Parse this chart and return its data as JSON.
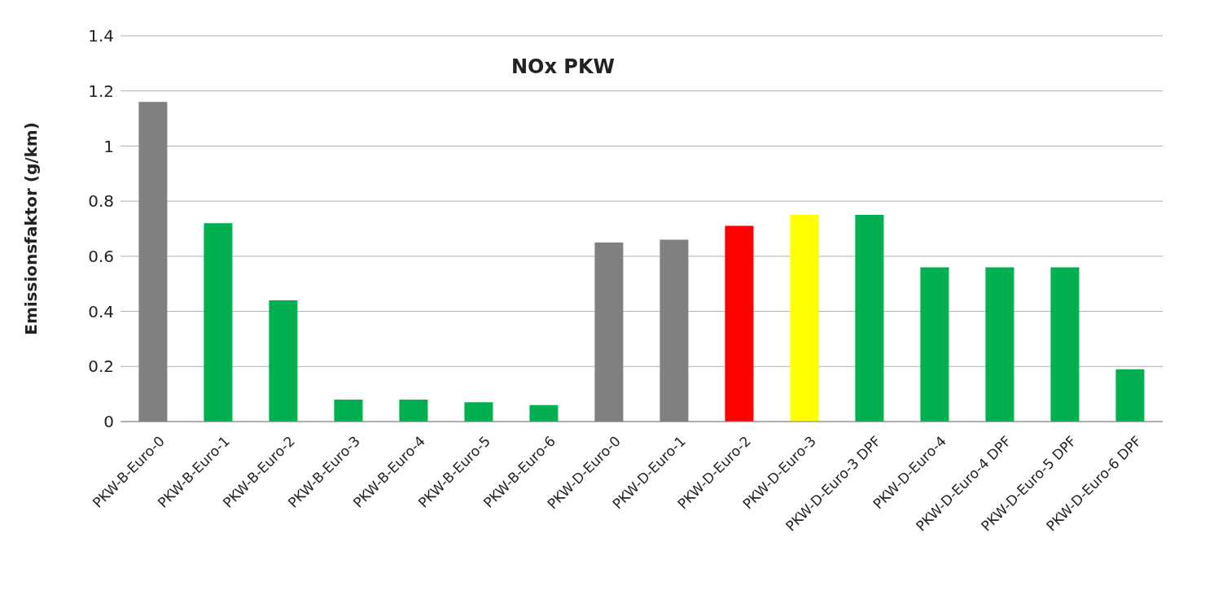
{
  "chart_data": {
    "type": "bar",
    "title": "NOx PKW",
    "ylabel": "Emissionsfaktor (g/km)",
    "categories": [
      "PKW-B-Euro-0",
      "PKW-B-Euro-1",
      "PKW-B-Euro-2",
      "PKW-B-Euro-3",
      "PKW-B-Euro-4",
      "PKW-B-Euro-5",
      "PKW-B-Euro-6",
      "PKW-D-Euro-0",
      "PKW-D-Euro-1",
      "PKW-D-Euro-2",
      "PKW-D-Euro-3",
      "PKW-D-Euro-3 DPF",
      "PKW-D-Euro-4",
      "PKW-D-Euro-4 DPF",
      "PKW-D-Euro-5 DPF",
      "PKW-D-Euro-6 DPF"
    ],
    "values": [
      1.16,
      0.72,
      0.44,
      0.08,
      0.08,
      0.07,
      0.06,
      0.65,
      0.66,
      0.71,
      0.75,
      0.75,
      0.56,
      0.56,
      0.56,
      0.19
    ],
    "colors": [
      "#808080",
      "#00b050",
      "#00b050",
      "#00b050",
      "#00b050",
      "#00b050",
      "#00b050",
      "#808080",
      "#808080",
      "#ff0000",
      "#ffff00",
      "#00b050",
      "#00b050",
      "#00b050",
      "#00b050",
      "#00b050"
    ],
    "ylim": [
      0,
      1.4
    ],
    "yticks": [
      0,
      {
        "value": 0.2,
        "label": "0.2"
      },
      {
        "value": 0.4,
        "label": "0.4"
      },
      {
        "value": 0.6,
        "label": "0.6"
      },
      {
        "value": 0.8,
        "label": "0.8"
      },
      1,
      {
        "value": 1.2,
        "label": "1.2"
      },
      {
        "value": 1.4,
        "label": "1.4"
      }
    ],
    "grid": "y"
  }
}
